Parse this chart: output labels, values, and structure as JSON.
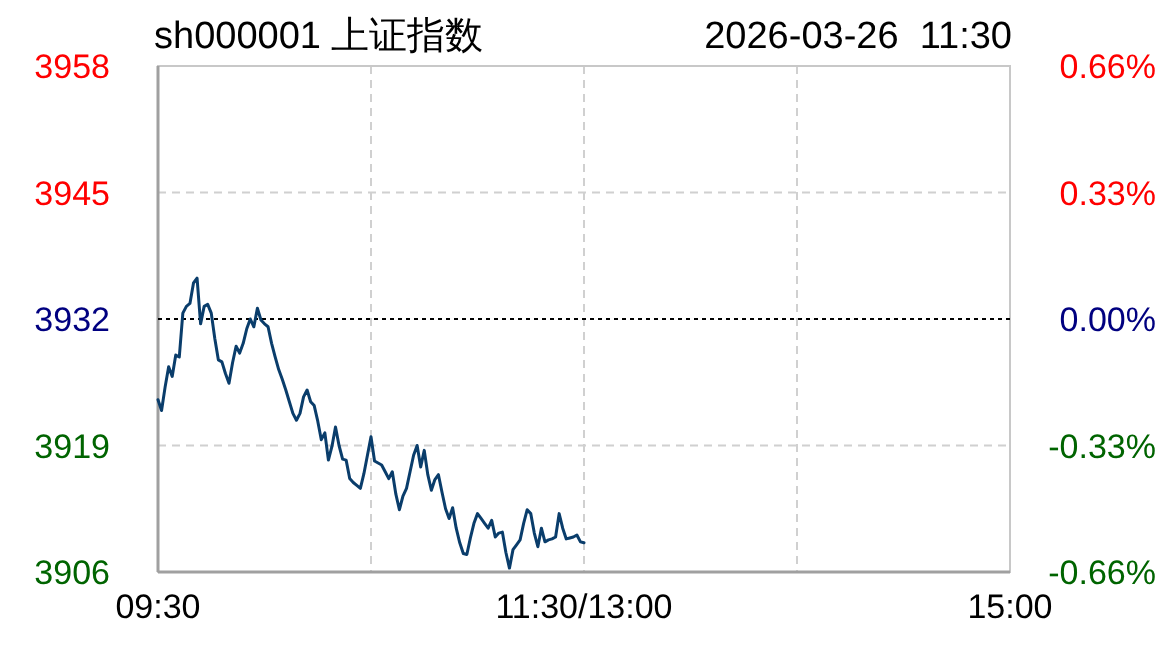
{
  "chart_data": {
    "type": "line",
    "title": "sh000001 上证指数",
    "subtitle": "2026-03-26  11:30",
    "categories": [
      "09:30",
      null,
      null,
      null,
      null,
      null,
      null,
      null,
      null,
      null,
      null,
      null,
      null,
      null,
      null,
      null,
      null,
      null,
      null,
      null,
      null,
      null,
      null,
      null,
      null,
      null,
      null,
      null,
      null,
      null,
      null,
      null,
      null,
      null,
      null,
      null,
      null,
      null,
      null,
      null,
      null,
      null,
      null,
      null,
      null,
      null,
      null,
      null,
      null,
      null,
      null,
      null,
      null,
      null,
      null,
      null,
      null,
      null,
      null,
      null,
      null,
      null,
      null,
      null,
      null,
      null,
      null,
      null,
      null,
      null,
      null,
      null,
      null,
      null,
      null,
      null,
      null,
      null,
      null,
      null,
      null,
      null,
      null,
      null,
      null,
      null,
      null,
      null,
      null,
      null,
      null,
      null,
      null,
      null,
      null,
      null,
      null,
      null,
      null,
      null,
      null,
      null,
      null,
      null,
      null,
      null,
      null,
      null,
      null,
      null,
      null,
      null,
      null,
      null,
      null,
      null,
      null,
      null,
      null,
      null,
      "11:30/13:00",
      null,
      null,
      null,
      null,
      null,
      null,
      null,
      null,
      null,
      null,
      null,
      null,
      null,
      null,
      null,
      null,
      null,
      null,
      null,
      null,
      null,
      null,
      null,
      null,
      null,
      null,
      null,
      null,
      null,
      null,
      null,
      null,
      null,
      null,
      null,
      null,
      null,
      null,
      null,
      null,
      null,
      null,
      null,
      null,
      null,
      null,
      null,
      null,
      null,
      null,
      null,
      null,
      null,
      null,
      null,
      null,
      null,
      null,
      null,
      null,
      null,
      null,
      null,
      null,
      null,
      null,
      null,
      null,
      null,
      null,
      null,
      null,
      null,
      null,
      null,
      null,
      null,
      null,
      null,
      null,
      null,
      null,
      null,
      null,
      null,
      null,
      null,
      null,
      null,
      null,
      null,
      null,
      null,
      null,
      null,
      null,
      null,
      null,
      null,
      null,
      null,
      null,
      null,
      null,
      null,
      null,
      null,
      null,
      null,
      null,
      null,
      null,
      null,
      null,
      null,
      null,
      null,
      null,
      null,
      "15:00"
    ],
    "ylim": [
      3906,
      3958
    ],
    "yticks": [
      3906,
      3919,
      3932,
      3945,
      3958
    ],
    "y2lim": [
      -0.66,
      0.66
    ],
    "y2ticks": [
      {
        "value": -0.66,
        "label": "-0.66%"
      },
      {
        "value": -0.33,
        "label": "-0.33%"
      },
      {
        "value": 0,
        "label": "0.00%"
      },
      {
        "value": 0.33,
        "label": "0.33%"
      },
      {
        "value": 0.66,
        "label": "0.66%"
      }
    ],
    "grid": true,
    "ref_lines": [
      {
        "axis": "y",
        "value": 3932,
        "color": "#000000",
        "line_style": "dotted"
      }
    ],
    "series": [
      {
        "color": "#0a3d6b",
        "values": [
          3923.7,
          3922.6,
          3925.0,
          3927.1,
          3926.1,
          3928.3,
          3928.1,
          3932.6,
          3933.3,
          3933.6,
          3935.7,
          3936.2,
          3931.5,
          3933.3,
          3933.5,
          3932.6,
          3930.0,
          3927.8,
          3927.6,
          3926.4,
          3925.4,
          3927.5,
          3929.2,
          3928.5,
          3929.5,
          3931.0,
          3932.0,
          3931.2,
          3933.1,
          3931.9,
          3931.5,
          3931.2,
          3929.5,
          3928.1,
          3926.8,
          3925.8,
          3924.7,
          3923.5,
          3922.3,
          3921.6,
          3922.3,
          3924.0,
          3924.7,
          3923.5,
          3923.1,
          3921.5,
          3919.6,
          3920.3,
          3917.5,
          3918.9,
          3920.9,
          3919.0,
          3917.6,
          3917.5,
          3915.6,
          3915.2,
          3914.9,
          3914.6,
          3916.1,
          3918.0,
          3919.9,
          3917.4,
          3917.2,
          3917.0,
          3916.3,
          3915.6,
          3916.3,
          3914.0,
          3912.4,
          3913.8,
          3914.6,
          3916.3,
          3918.0,
          3919.0,
          3916.8,
          3918.5,
          3916.0,
          3914.4,
          3915.5,
          3916.0,
          3914.2,
          3912.5,
          3911.5,
          3912.6,
          3910.5,
          3909.0,
          3907.9,
          3907.8,
          3909.5,
          3911.0,
          3912.0,
          3911.5,
          3911.0,
          3910.5,
          3911.3,
          3909.6,
          3910.0,
          3910.1,
          3908.0,
          3906.4,
          3908.3,
          3908.8,
          3909.3,
          3911.0,
          3912.4,
          3912.0,
          3910.0,
          3908.6,
          3910.5,
          3909.1,
          3909.3,
          3909.4,
          3909.6,
          3912.0,
          3910.5,
          3909.4,
          3909.5,
          3909.6,
          3909.8,
          3909.1,
          3909.0,
          null,
          null,
          null,
          null,
          null,
          null,
          null,
          null,
          null,
          null,
          null,
          null,
          null,
          null,
          null,
          null,
          null,
          null,
          null,
          null,
          null,
          null,
          null,
          null,
          null,
          null,
          null,
          null,
          null,
          null,
          null,
          null,
          null,
          null,
          null,
          null,
          null,
          null,
          null,
          null,
          null,
          null,
          null,
          null,
          null,
          null,
          null,
          null,
          null,
          null,
          null,
          null,
          null,
          null,
          null,
          null,
          null,
          null,
          null,
          null,
          null,
          null,
          null,
          null,
          null,
          null,
          null,
          null,
          null,
          null,
          null,
          null,
          null,
          null,
          null,
          null,
          null,
          null,
          null,
          null,
          null,
          null,
          null,
          null,
          null,
          null,
          null,
          null,
          null,
          null,
          null,
          null,
          null,
          null,
          null,
          null,
          null,
          null,
          null,
          null,
          null,
          null,
          null,
          null,
          null,
          null,
          null,
          null,
          null,
          null,
          null,
          null,
          null,
          null,
          null,
          null,
          null,
          null,
          null,
          null
        ]
      }
    ]
  }
}
